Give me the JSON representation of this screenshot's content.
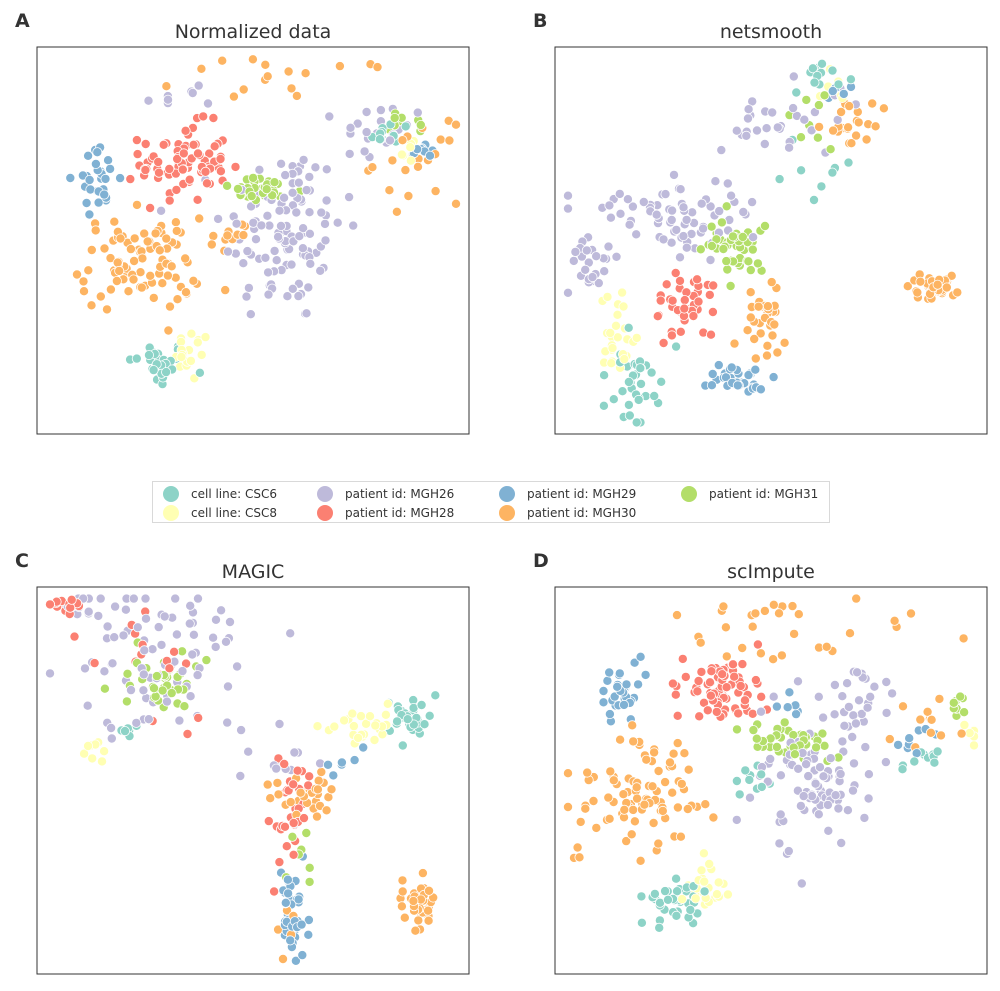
{
  "chart_data": [
    {
      "type": "scatter",
      "panel_letter": "A",
      "title": "Normalized data",
      "xlabel": "",
      "ylabel": "",
      "axis_ticks": "none",
      "grid": false,
      "clusters": [
        {
          "series": "CSC6",
          "cx": 0.28,
          "cy": 0.18,
          "sx": 0.035,
          "sy": 0.03,
          "n": 30
        },
        {
          "series": "CSC6",
          "cx": 0.82,
          "cy": 0.78,
          "sx": 0.03,
          "sy": 0.015,
          "n": 10
        },
        {
          "series": "CSC8",
          "cx": 0.36,
          "cy": 0.2,
          "sx": 0.02,
          "sy": 0.035,
          "n": 18
        },
        {
          "series": "CSC8",
          "cx": 0.86,
          "cy": 0.74,
          "sx": 0.02,
          "sy": 0.02,
          "n": 7
        },
        {
          "series": "MGH26",
          "cx": 0.57,
          "cy": 0.52,
          "sx": 0.07,
          "sy": 0.12,
          "n": 110
        },
        {
          "series": "MGH26",
          "cx": 0.8,
          "cy": 0.78,
          "sx": 0.05,
          "sy": 0.04,
          "n": 25
        },
        {
          "series": "MGH26",
          "cx": 0.35,
          "cy": 0.87,
          "sx": 0.06,
          "sy": 0.02,
          "n": 8
        },
        {
          "series": "MGH28",
          "cx": 0.34,
          "cy": 0.7,
          "sx": 0.05,
          "sy": 0.05,
          "n": 80
        },
        {
          "series": "MGH29",
          "cx": 0.14,
          "cy": 0.66,
          "sx": 0.025,
          "sy": 0.04,
          "n": 28
        },
        {
          "series": "MGH29",
          "cx": 0.9,
          "cy": 0.74,
          "sx": 0.02,
          "sy": 0.02,
          "n": 8
        },
        {
          "series": "MGH30",
          "cx": 0.24,
          "cy": 0.44,
          "sx": 0.07,
          "sy": 0.06,
          "n": 90
        },
        {
          "series": "MGH30",
          "cx": 0.45,
          "cy": 0.52,
          "sx": 0.02,
          "sy": 0.02,
          "n": 10
        },
        {
          "series": "MGH30",
          "cx": 0.88,
          "cy": 0.7,
          "sx": 0.05,
          "sy": 0.05,
          "n": 20
        },
        {
          "series": "MGH30",
          "cx": 0.58,
          "cy": 0.92,
          "sx": 0.12,
          "sy": 0.03,
          "n": 16
        },
        {
          "series": "MGH31",
          "cx": 0.52,
          "cy": 0.63,
          "sx": 0.05,
          "sy": 0.015,
          "n": 32
        },
        {
          "series": "MGH31",
          "cx": 0.86,
          "cy": 0.8,
          "sx": 0.03,
          "sy": 0.02,
          "n": 10
        }
      ]
    },
    {
      "type": "scatter",
      "panel_letter": "B",
      "title": "netsmooth",
      "xlabel": "",
      "ylabel": "",
      "axis_ticks": "none",
      "grid": false,
      "clusters": [
        {
          "series": "CSC6",
          "cx": 0.19,
          "cy": 0.13,
          "sx": 0.03,
          "sy": 0.05,
          "n": 35
        },
        {
          "series": "CSC6",
          "cx": 0.62,
          "cy": 0.91,
          "sx": 0.03,
          "sy": 0.015,
          "n": 12
        },
        {
          "series": "CSC6",
          "cx": 0.6,
          "cy": 0.7,
          "sx": 0.03,
          "sy": 0.06,
          "n": 8
        },
        {
          "series": "CSC8",
          "cx": 0.14,
          "cy": 0.24,
          "sx": 0.025,
          "sy": 0.05,
          "n": 26
        },
        {
          "series": "CSC8",
          "cx": 0.65,
          "cy": 0.9,
          "sx": 0.02,
          "sy": 0.02,
          "n": 6
        },
        {
          "series": "MGH26",
          "cx": 0.27,
          "cy": 0.56,
          "sx": 0.09,
          "sy": 0.05,
          "n": 75
        },
        {
          "series": "MGH26",
          "cx": 0.08,
          "cy": 0.43,
          "sx": 0.025,
          "sy": 0.04,
          "n": 25
        },
        {
          "series": "MGH26",
          "cx": 0.53,
          "cy": 0.8,
          "sx": 0.08,
          "sy": 0.04,
          "n": 30
        },
        {
          "series": "MGH28",
          "cx": 0.31,
          "cy": 0.34,
          "sx": 0.035,
          "sy": 0.05,
          "n": 42
        },
        {
          "series": "MGH29",
          "cx": 0.42,
          "cy": 0.14,
          "sx": 0.035,
          "sy": 0.025,
          "n": 35
        },
        {
          "series": "MGH29",
          "cx": 0.66,
          "cy": 0.88,
          "sx": 0.02,
          "sy": 0.02,
          "n": 8
        },
        {
          "series": "MGH30",
          "cx": 0.88,
          "cy": 0.38,
          "sx": 0.025,
          "sy": 0.015,
          "n": 40
        },
        {
          "series": "MGH30",
          "cx": 0.48,
          "cy": 0.3,
          "sx": 0.03,
          "sy": 0.05,
          "n": 34
        },
        {
          "series": "MGH30",
          "cx": 0.7,
          "cy": 0.8,
          "sx": 0.04,
          "sy": 0.04,
          "n": 22
        },
        {
          "series": "MGH31",
          "cx": 0.42,
          "cy": 0.48,
          "sx": 0.035,
          "sy": 0.035,
          "n": 45
        },
        {
          "series": "MGH31",
          "cx": 0.6,
          "cy": 0.8,
          "sx": 0.03,
          "sy": 0.04,
          "n": 8
        }
      ]
    },
    {
      "type": "scatter",
      "panel_letter": "C",
      "title": "MAGIC",
      "xlabel": "",
      "ylabel": "",
      "axis_ticks": "none",
      "grid": false,
      "clusters": [
        {
          "series": "CSC6",
          "cx": 0.86,
          "cy": 0.66,
          "sx": 0.025,
          "sy": 0.025,
          "n": 30
        },
        {
          "series": "CSC6",
          "cx": 0.21,
          "cy": 0.63,
          "sx": 0.02,
          "sy": 0.01,
          "n": 6
        },
        {
          "series": "CSC8",
          "cx": 0.74,
          "cy": 0.64,
          "sx": 0.04,
          "sy": 0.025,
          "n": 25
        },
        {
          "series": "CSC8",
          "cx": 0.14,
          "cy": 0.58,
          "sx": 0.015,
          "sy": 0.03,
          "n": 8
        },
        {
          "series": "MGH26",
          "cx": 0.3,
          "cy": 0.8,
          "sx": 0.12,
          "sy": 0.1,
          "n": 80
        },
        {
          "series": "MGH26",
          "cx": 0.1,
          "cy": 0.94,
          "sx": 0.04,
          "sy": 0.02,
          "n": 10
        },
        {
          "series": "MGH26",
          "cx": 0.55,
          "cy": 0.55,
          "sx": 0.04,
          "sy": 0.04,
          "n": 12
        },
        {
          "series": "MGH28",
          "cx": 0.06,
          "cy": 0.95,
          "sx": 0.02,
          "sy": 0.01,
          "n": 15
        },
        {
          "series": "MGH28",
          "cx": 0.59,
          "cy": 0.42,
          "sx": 0.02,
          "sy": 0.08,
          "n": 30
        },
        {
          "series": "MGH28",
          "cx": 0.25,
          "cy": 0.8,
          "sx": 0.07,
          "sy": 0.07,
          "n": 16
        },
        {
          "series": "MGH29",
          "cx": 0.59,
          "cy": 0.16,
          "sx": 0.015,
          "sy": 0.06,
          "n": 45
        },
        {
          "series": "MGH29",
          "cx": 0.72,
          "cy": 0.54,
          "sx": 0.02,
          "sy": 0.02,
          "n": 6
        },
        {
          "series": "MGH30",
          "cx": 0.88,
          "cy": 0.18,
          "sx": 0.02,
          "sy": 0.03,
          "n": 40
        },
        {
          "series": "MGH30",
          "cx": 0.62,
          "cy": 0.47,
          "sx": 0.04,
          "sy": 0.03,
          "n": 28
        },
        {
          "series": "MGH30",
          "cx": 0.58,
          "cy": 0.13,
          "sx": 0.012,
          "sy": 0.03,
          "n": 10
        },
        {
          "series": "MGH31",
          "cx": 0.3,
          "cy": 0.75,
          "sx": 0.06,
          "sy": 0.04,
          "n": 40
        },
        {
          "series": "MGH31",
          "cx": 0.6,
          "cy": 0.3,
          "sx": 0.02,
          "sy": 0.08,
          "n": 8
        }
      ]
    },
    {
      "type": "scatter",
      "panel_letter": "D",
      "title": "scImpute",
      "xlabel": "",
      "ylabel": "",
      "axis_ticks": "none",
      "grid": false,
      "clusters": [
        {
          "series": "CSC6",
          "cx": 0.28,
          "cy": 0.18,
          "sx": 0.035,
          "sy": 0.03,
          "n": 35
        },
        {
          "series": "CSC6",
          "cx": 0.46,
          "cy": 0.5,
          "sx": 0.025,
          "sy": 0.02,
          "n": 10
        },
        {
          "series": "CSC6",
          "cx": 0.84,
          "cy": 0.56,
          "sx": 0.035,
          "sy": 0.015,
          "n": 10
        },
        {
          "series": "CSC8",
          "cx": 0.35,
          "cy": 0.22,
          "sx": 0.02,
          "sy": 0.035,
          "n": 25
        },
        {
          "series": "CSC8",
          "cx": 0.97,
          "cy": 0.62,
          "sx": 0.012,
          "sy": 0.02,
          "n": 6
        },
        {
          "series": "MGH26",
          "cx": 0.6,
          "cy": 0.5,
          "sx": 0.07,
          "sy": 0.09,
          "n": 90
        },
        {
          "series": "MGH26",
          "cx": 0.7,
          "cy": 0.72,
          "sx": 0.04,
          "sy": 0.05,
          "n": 25
        },
        {
          "series": "MGH28",
          "cx": 0.38,
          "cy": 0.74,
          "sx": 0.05,
          "sy": 0.04,
          "n": 75
        },
        {
          "series": "MGH29",
          "cx": 0.16,
          "cy": 0.73,
          "sx": 0.025,
          "sy": 0.035,
          "n": 30
        },
        {
          "series": "MGH29",
          "cx": 0.84,
          "cy": 0.6,
          "sx": 0.03,
          "sy": 0.02,
          "n": 8
        },
        {
          "series": "MGH29",
          "cx": 0.55,
          "cy": 0.68,
          "sx": 0.02,
          "sy": 0.02,
          "n": 6
        },
        {
          "series": "MGH30",
          "cx": 0.2,
          "cy": 0.46,
          "sx": 0.07,
          "sy": 0.09,
          "n": 90
        },
        {
          "series": "MGH30",
          "cx": 0.55,
          "cy": 0.88,
          "sx": 0.15,
          "sy": 0.06,
          "n": 30
        },
        {
          "series": "MGH30",
          "cx": 0.85,
          "cy": 0.65,
          "sx": 0.04,
          "sy": 0.03,
          "n": 12
        },
        {
          "series": "MGH31",
          "cx": 0.55,
          "cy": 0.6,
          "sx": 0.06,
          "sy": 0.025,
          "n": 45
        },
        {
          "series": "MGH31",
          "cx": 0.93,
          "cy": 0.7,
          "sx": 0.02,
          "sy": 0.015,
          "n": 8
        }
      ]
    }
  ],
  "legend": {
    "items": [
      {
        "series": "CSC6",
        "label": "cell line: CSC6",
        "color": "#8dd3c7"
      },
      {
        "series": "CSC8",
        "label": "cell line: CSC8",
        "color": "#ffffb3"
      },
      {
        "series": "MGH26",
        "label": "patient id: MGH26",
        "color": "#bebada"
      },
      {
        "series": "MGH28",
        "label": "patient id: MGH28",
        "color": "#fb8072"
      },
      {
        "series": "MGH29",
        "label": "patient id: MGH29",
        "color": "#80b1d3"
      },
      {
        "series": "MGH30",
        "label": "patient id: MGH30",
        "color": "#fdb462"
      },
      {
        "series": "MGH31",
        "label": "patient id: MGH31",
        "color": "#b3de69"
      }
    ]
  }
}
